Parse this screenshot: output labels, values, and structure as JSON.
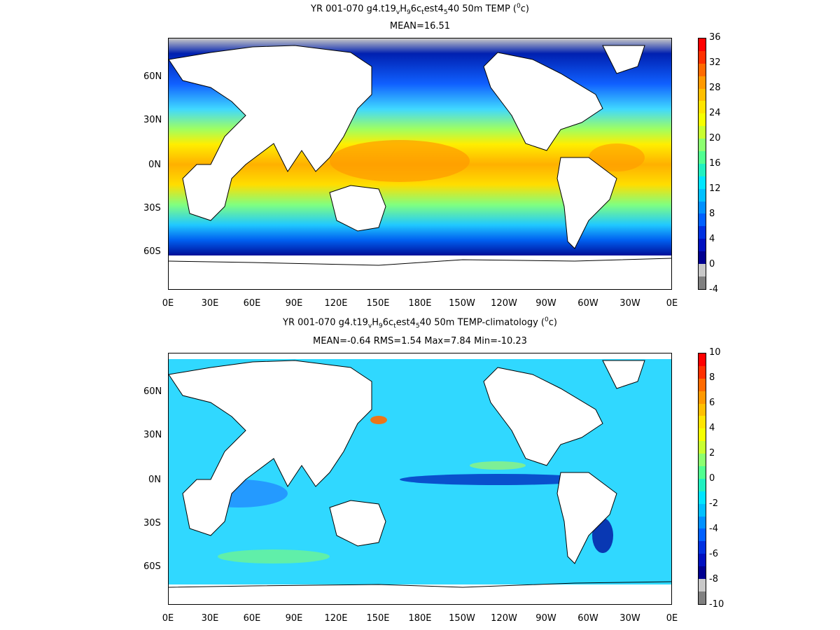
{
  "panels": [
    {
      "title_parts": [
        "YR 001-070 g4.t19",
        "v",
        "H",
        "9",
        "6c",
        "t",
        "est4",
        "5",
        "40 50m TEMP (",
        "0",
        "c)"
      ],
      "subtitle": "MEAN=16.51",
      "colorbar_labels": [
        "36",
        "32",
        "28",
        "24",
        "20",
        "16",
        "12",
        "8",
        "4",
        "0",
        "-4"
      ],
      "colorbar_colors": [
        "#ff0000",
        "#ff3000",
        "#ff6a00",
        "#ff9900",
        "#ffbf00",
        "#ffe400",
        "#f5ff00",
        "#c8ff30",
        "#8cff70",
        "#50ff90",
        "#20f0c0",
        "#00e5ff",
        "#00c0ff",
        "#0090ff",
        "#0060ff",
        "#0030e0",
        "#0010c0",
        "#000090",
        "#c8c8c8",
        "#808080"
      ],
      "variable": "50m TEMP",
      "units": "0c"
    },
    {
      "title_parts": [
        "YR 001-070 g4.t19",
        "v",
        "H",
        "9",
        "6c",
        "t",
        "est4",
        "5",
        "40 50m TEMP-climatology (",
        "0",
        "c)"
      ],
      "subtitle": "MEAN=-0.64   RMS=1.54   Max=7.84   Min=-10.23",
      "colorbar_labels": [
        "10",
        "8",
        "6",
        "4",
        "2",
        "0",
        "-2",
        "-4",
        "-6",
        "-8",
        "-10"
      ],
      "colorbar_colors": [
        "#ff0000",
        "#ff3000",
        "#ff6a00",
        "#ff9900",
        "#ffbf00",
        "#ffe400",
        "#f5ff00",
        "#c8ff30",
        "#8cff70",
        "#50ff90",
        "#20f0c0",
        "#00e5ff",
        "#00c0ff",
        "#0090ff",
        "#0060ff",
        "#0030e0",
        "#0010c0",
        "#000090",
        "#c8c8c8",
        "#808080"
      ],
      "variable": "50m TEMP-climatology",
      "units": "0c"
    }
  ],
  "x_ticks": [
    "0E",
    "30E",
    "60E",
    "90E",
    "120E",
    "150E",
    "180E",
    "150W",
    "120W",
    "90W",
    "60W",
    "30W",
    "0E"
  ],
  "y_ticks": [
    "60N",
    "30N",
    "0N",
    "30S",
    "60S"
  ]
}
